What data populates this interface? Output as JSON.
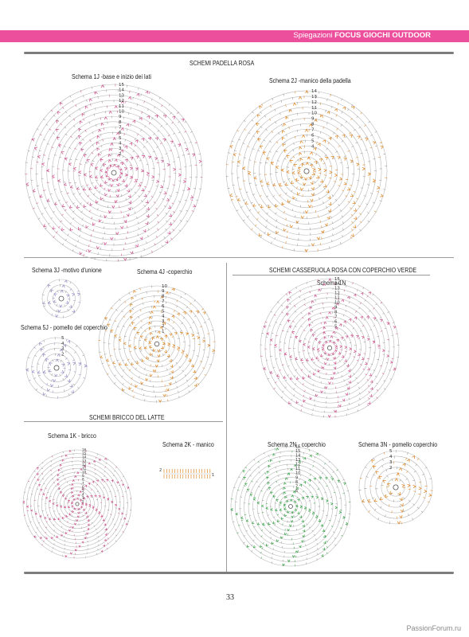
{
  "header": {
    "prefix": "Spiegazioni",
    "title": "FOCUS GIOCHI OUTDOOR",
    "accent_color": "#ec4f9c"
  },
  "sections": {
    "padella": "SCHEMI PADELLA ROSA",
    "casseruola": "SCHEMI CASSERUOLA ROSA CON COPERCHIO VERDE",
    "bricco": "SCHEMI BRICCO DEL LATTE"
  },
  "schemes": {
    "s1j": "Schema 1J -base e inizio dei lati",
    "s2j": "Schema 2J -manico della padella",
    "s3j": "Schema 3J -motivo d'unione",
    "s4j": "Schema 4J -coperchio",
    "s5j": "Schema 5J - pomello del coperchio",
    "s1n": "Schema 1N",
    "s1k": "Schema 1K - bricco",
    "s2k": "Schema 2K - manico",
    "s2n": "Schema 2N - coperchio",
    "s3n": "Schema 3N - pomello coperchio"
  },
  "row_numbers": {
    "s1j": [
      "15",
      "14",
      "13",
      "12",
      "11",
      "10",
      "9",
      "8",
      "7",
      "6",
      "5",
      "4",
      "3",
      "2"
    ],
    "s2j": [
      "14",
      "13",
      "12",
      "11",
      "10",
      "9",
      "8",
      "7",
      "6",
      "5",
      "4"
    ],
    "s4j": [
      "10",
      "9",
      "8",
      "7",
      "6",
      "5",
      "4",
      "3",
      "2",
      "1"
    ],
    "s1n": [
      "15",
      "14",
      "13",
      "12",
      "11",
      "10",
      "9",
      "8",
      "7",
      "6",
      "5"
    ],
    "s1k": [
      "16",
      "15",
      "14",
      "13",
      "12",
      "11",
      "10",
      "9",
      "8",
      "7",
      "6",
      "5",
      "4",
      "3",
      "2"
    ],
    "s2n": [
      "16",
      "15",
      "14",
      "13",
      "12",
      "11",
      "10",
      "9",
      "8",
      "7",
      "6"
    ],
    "s3n": [
      "5",
      "4",
      "3",
      "2"
    ],
    "s5j": [
      "5",
      "4",
      "3",
      "2"
    ],
    "s2k": [
      "2",
      "1"
    ]
  },
  "colors": {
    "pink": "#d0568f",
    "orange": "#e08a2a",
    "green": "#3aa54a",
    "lavender": "#9a8fc7",
    "ring": "#b8b8b8"
  },
  "page_number": "33",
  "watermark": "PassionForum.ru"
}
